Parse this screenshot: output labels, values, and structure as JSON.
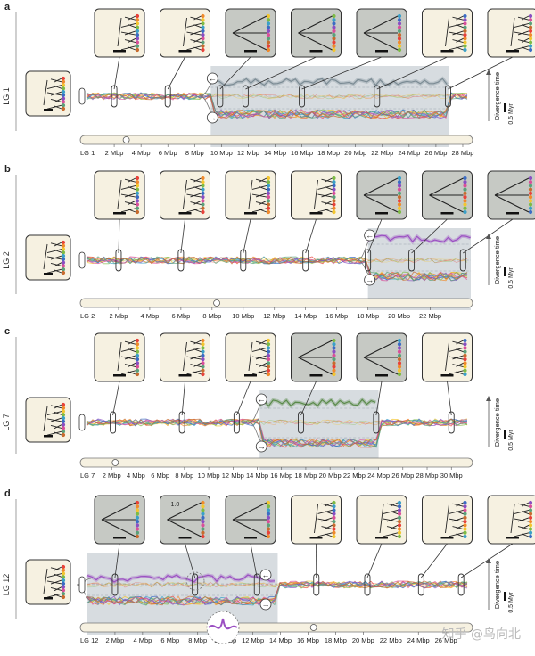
{
  "watermark": "知乎 @鸟向北",
  "scale_label": "0.5 Myr",
  "divergence_label": "Divergence time",
  "chart_data": [
    {
      "type": "line",
      "panel": "a",
      "chromosome": "LG 1",
      "x_ticks": [
        "2 Mbp",
        "4 Mbp",
        "6 Mbp",
        "8 Mbp",
        "10 Mbp",
        "12 Mbp",
        "14 Mbp",
        "16 Mbp",
        "18 Mbp",
        "20 Mbp",
        "22 Mbp",
        "24 Mbp",
        "26 Mbp",
        "28 Mbp"
      ],
      "xlim": [
        0,
        28.6
      ],
      "inversion_region_mbp": [
        9.2,
        27.0
      ],
      "centromere_mbp": 2.9,
      "tree_positions_mbp": [
        2.0,
        6.0,
        9.9,
        11.8,
        16.0,
        21.6,
        26.9
      ],
      "tree_highlighted": [
        false,
        false,
        true,
        true,
        true,
        false,
        false
      ],
      "upper_track_color": "#7b8b94",
      "lower_track_color": "#d8473a"
    },
    {
      "type": "line",
      "panel": "b",
      "chromosome": "LG 2",
      "x_ticks": [
        "2 Mbp",
        "4 Mbp",
        "6 Mbp",
        "8 Mbp",
        "10 Mbp",
        "12 Mbp",
        "14 Mbp",
        "16 Mbp",
        "18 Mbp",
        "20 Mbp",
        "22 Mbp"
      ],
      "xlim": [
        0,
        24.6
      ],
      "inversion_region_mbp": [
        18.0,
        24.6
      ],
      "centromere_mbp": 8.3,
      "tree_positions_mbp": [
        2.0,
        6.0,
        10.0,
        14.0,
        18.0,
        20.8,
        24.1
      ],
      "tree_highlighted": [
        false,
        false,
        false,
        false,
        true,
        true,
        true
      ],
      "upper_track_color": "#9b4fc2",
      "lower_track_color": "#e0a530"
    },
    {
      "type": "line",
      "panel": "c",
      "chromosome": "LG 7",
      "x_ticks": [
        "2 Mbp",
        "4 Mbp",
        "6 Mbp",
        "8 Mbp",
        "10 Mbp",
        "12 Mbp",
        "14 Mbp",
        "16 Mbp",
        "18 Mbp",
        "20 Mbp",
        "22 Mbp",
        "24 Mbp",
        "26 Mbp",
        "28 Mbp",
        "30 Mbp"
      ],
      "xlim": [
        0,
        31.6
      ],
      "inversion_region_mbp": [
        14.2,
        24.0
      ],
      "centromere_mbp": 2.3,
      "tree_positions_mbp": [
        2.1,
        7.8,
        12.3,
        17.6,
        23.8,
        30.0
      ],
      "tree_highlighted": [
        false,
        false,
        false,
        true,
        true,
        false
      ],
      "upper_track_color": "#5a8a4a",
      "lower_track_color": "#d86a2a"
    },
    {
      "type": "line",
      "panel": "d",
      "chromosome": "LG 12",
      "x_ticks": [
        "2 Mbp",
        "4 Mbp",
        "6 Mbp",
        "8 Mbp",
        "10 Mbp",
        "12 Mbp",
        "14 Mbp",
        "16 Mbp",
        "18 Mbp",
        "20 Mbp",
        "22 Mbp",
        "24 Mbp",
        "26 Mbp"
      ],
      "xlim": [
        0,
        27.8
      ],
      "inversion_region_mbp": [
        0.0,
        13.8
      ],
      "centromere_mbp": 16.4,
      "tree_positions_mbp": [
        2.0,
        7.8,
        12.3,
        16.6,
        20.3,
        24.2,
        27.1
      ],
      "tree_highlighted": [
        true,
        true,
        true,
        false,
        false,
        false,
        false
      ],
      "inset_label": "1.0",
      "upper_track_color": "#9b4fc2",
      "lower_track_color": "#e0a530"
    }
  ]
}
